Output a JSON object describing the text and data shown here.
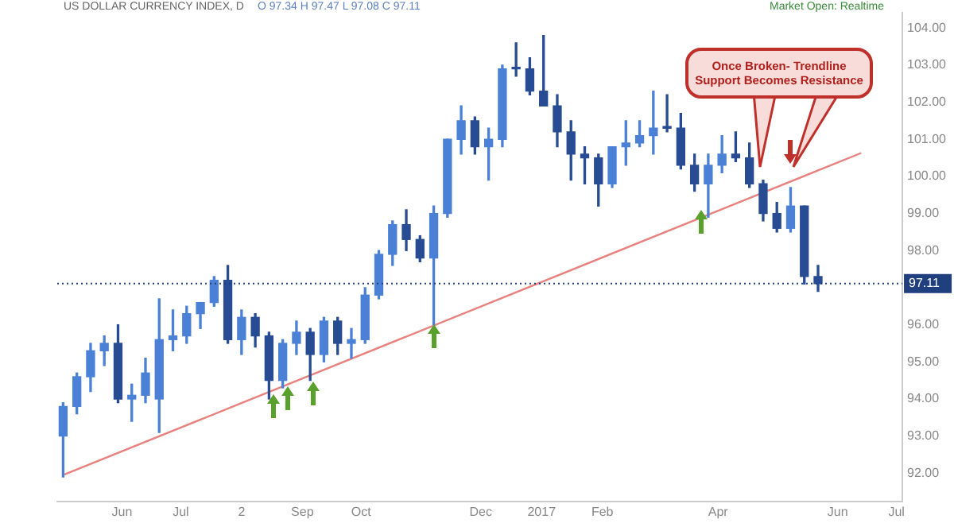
{
  "chart_data": {
    "type": "candlestick",
    "title": "US DOLLAR CURRENCY INDEX, D",
    "subtitle": "O 97.34 H 97.47 L 97.08 C 97.11",
    "x": [
      "2016-05-02",
      "2016-05-09",
      "2016-05-16",
      "2016-05-23",
      "2016-05-30",
      "2016-06-06",
      "2016-06-13",
      "2016-06-20",
      "2016-06-27",
      "2016-07-04",
      "2016-07-11",
      "2016-07-18",
      "2016-07-25",
      "2016-08-01",
      "2016-08-08",
      "2016-08-15",
      "2016-08-22",
      "2016-08-29",
      "2016-09-05",
      "2016-09-12",
      "2016-09-19",
      "2016-09-26",
      "2016-10-03",
      "2016-10-10",
      "2016-10-17",
      "2016-10-24",
      "2016-10-31",
      "2016-11-07",
      "2016-11-14",
      "2016-11-21",
      "2016-11-28",
      "2016-12-05",
      "2016-12-12",
      "2016-12-19",
      "2016-12-26",
      "2017-01-02",
      "2017-01-09",
      "2017-01-16",
      "2017-01-23",
      "2017-01-30",
      "2017-02-06",
      "2017-02-13",
      "2017-02-20",
      "2017-02-27",
      "2017-03-06",
      "2017-03-13",
      "2017-03-20",
      "2017-03-27",
      "2017-04-03",
      "2017-04-10",
      "2017-04-17",
      "2017-04-24",
      "2017-05-01",
      "2017-05-08",
      "2017-05-15",
      "2017-05-22"
    ],
    "ohlc": [
      [
        93.0,
        93.9,
        91.9,
        93.8
      ],
      [
        93.8,
        94.7,
        93.6,
        94.6
      ],
      [
        94.6,
        95.5,
        94.2,
        95.3
      ],
      [
        95.3,
        95.7,
        94.9,
        95.5
      ],
      [
        95.5,
        96.0,
        93.9,
        94.0
      ],
      [
        94.0,
        94.4,
        93.4,
        94.1
      ],
      [
        94.1,
        95.1,
        93.9,
        94.7
      ],
      [
        94.0,
        96.7,
        93.1,
        95.6
      ],
      [
        95.6,
        96.4,
        95.3,
        95.7
      ],
      [
        95.7,
        96.5,
        95.5,
        96.3
      ],
      [
        96.3,
        96.6,
        95.9,
        96.6
      ],
      [
        96.6,
        97.3,
        96.5,
        97.2
      ],
      [
        97.2,
        97.6,
        95.5,
        95.6
      ],
      [
        95.6,
        96.4,
        95.2,
        96.2
      ],
      [
        96.2,
        96.3,
        95.4,
        95.7
      ],
      [
        95.7,
        95.8,
        94.0,
        94.5
      ],
      [
        94.5,
        95.6,
        94.3,
        95.5
      ],
      [
        95.5,
        96.1,
        95.2,
        95.8
      ],
      [
        95.8,
        95.9,
        94.5,
        95.2
      ],
      [
        95.2,
        96.2,
        95.0,
        96.1
      ],
      [
        96.1,
        96.2,
        95.2,
        95.5
      ],
      [
        95.5,
        95.9,
        95.1,
        95.6
      ],
      [
        95.6,
        97.0,
        95.5,
        96.8
      ],
      [
        96.8,
        98.0,
        96.7,
        97.9
      ],
      [
        97.9,
        98.8,
        97.6,
        98.7
      ],
      [
        98.7,
        99.1,
        98.0,
        98.3
      ],
      [
        98.3,
        98.4,
        97.7,
        97.8
      ],
      [
        97.8,
        99.2,
        96.0,
        99.0
      ],
      [
        99.0,
        101.0,
        98.9,
        101.0
      ],
      [
        101.0,
        101.9,
        100.6,
        101.5
      ],
      [
        101.5,
        101.6,
        100.6,
        100.8
      ],
      [
        100.8,
        101.3,
        99.9,
        101.0
      ],
      [
        101.0,
        103.0,
        100.8,
        102.9
      ],
      [
        102.9,
        103.6,
        102.7,
        102.9
      ],
      [
        102.9,
        103.2,
        102.2,
        102.3
      ],
      [
        102.3,
        103.8,
        101.9,
        101.9
      ],
      [
        101.9,
        102.2,
        100.8,
        101.2
      ],
      [
        101.2,
        101.5,
        99.9,
        100.6
      ],
      [
        100.6,
        100.8,
        99.8,
        100.5
      ],
      [
        100.5,
        100.6,
        99.2,
        99.8
      ],
      [
        99.8,
        100.8,
        99.7,
        100.8
      ],
      [
        100.8,
        101.5,
        100.3,
        100.9
      ],
      [
        100.9,
        101.5,
        100.8,
        101.1
      ],
      [
        101.1,
        102.3,
        100.6,
        101.3
      ],
      [
        101.3,
        102.2,
        101.2,
        101.3
      ],
      [
        101.3,
        101.7,
        100.2,
        100.3
      ],
      [
        100.3,
        100.6,
        99.6,
        99.8
      ],
      [
        99.8,
        100.6,
        98.9,
        100.3
      ],
      [
        100.3,
        101.1,
        100.1,
        100.6
      ],
      [
        100.6,
        101.2,
        100.4,
        100.5
      ],
      [
        100.5,
        100.9,
        99.7,
        99.8
      ],
      [
        99.8,
        99.9,
        98.8,
        99.0
      ],
      [
        99.0,
        99.3,
        98.5,
        98.6
      ],
      [
        98.6,
        99.7,
        98.5,
        99.2
      ],
      [
        99.2,
        99.2,
        97.1,
        97.3
      ],
      [
        97.3,
        97.6,
        96.9,
        97.11
      ]
    ],
    "colors": [
      "#4a80d6",
      "#4a80d6",
      "#4a80d6",
      "#4a80d6",
      "#274c94",
      "#4a80d6",
      "#4a80d6",
      "#4a80d6",
      "#4a80d6",
      "#4a80d6",
      "#4a80d6",
      "#4a80d6",
      "#274c94",
      "#4a80d6",
      "#274c94",
      "#274c94",
      "#4a80d6",
      "#4a80d6",
      "#274c94",
      "#4a80d6",
      "#274c94",
      "#4a80d6",
      "#4a80d6",
      "#4a80d6",
      "#4a80d6",
      "#274c94",
      "#274c94",
      "#4a80d6",
      "#4a80d6",
      "#4a80d6",
      "#274c94",
      "#4a80d6",
      "#4a80d6",
      "#274c94",
      "#274c94",
      "#274c94",
      "#274c94",
      "#274c94",
      "#274c94",
      "#274c94",
      "#4a80d6",
      "#4a80d6",
      "#4a80d6",
      "#4a80d6",
      "#274c94",
      "#274c94",
      "#274c94",
      "#4a80d6",
      "#4a80d6",
      "#274c94",
      "#274c94",
      "#274c94",
      "#274c94",
      "#4a80d6",
      "#274c94",
      "#274c94"
    ],
    "series": [
      {
        "type": "line",
        "x": [
          "2016-05-02",
          "2017-06-13"
        ],
        "values": [
          91.95,
          100.63
        ],
        "color": "#e8827f"
      }
    ],
    "xlim": [
      "2016-04-29",
      "2017-07-04"
    ],
    "ylim": [
      91.24,
      104.42
    ],
    "xticks": [
      {
        "value": "2016-06-01",
        "label": "Jun"
      },
      {
        "value": "2016-07-01",
        "label": "Jul"
      },
      {
        "value": "2016-08-01",
        "label": "2"
      },
      {
        "value": "2016-09-01",
        "label": "Sep"
      },
      {
        "value": "2016-10-01",
        "label": "Oct"
      },
      {
        "value": "2016-12-01",
        "label": "Dec"
      },
      {
        "value": "2017-01-01",
        "label": "2017"
      },
      {
        "value": "2017-02-01",
        "label": "Feb"
      },
      {
        "value": "2017-04-01",
        "label": "Apr"
      },
      {
        "value": "2017-06-01",
        "label": "Jun"
      },
      {
        "value": "2017-07-01",
        "label": "Jul"
      }
    ],
    "yticks": [
      {
        "value": 92,
        "label": "92.00"
      },
      {
        "value": 93,
        "label": "93.00"
      },
      {
        "value": 94,
        "label": "94.00"
      },
      {
        "value": 95,
        "label": "95.00"
      },
      {
        "value": 96,
        "label": "96.00"
      },
      {
        "value": 98,
        "label": "98.00"
      },
      {
        "value": 99,
        "label": "99.00"
      },
      {
        "value": 100,
        "label": "100.00"
      },
      {
        "value": 101,
        "label": "101.00"
      },
      {
        "value": 102,
        "label": "102.00"
      },
      {
        "value": 103,
        "label": "103.00"
      },
      {
        "value": 104,
        "label": "104.00"
      }
    ],
    "ref_lines": [
      {
        "axis": "y",
        "value": 97.11,
        "label": "97.11",
        "color": "#1f3f7f"
      }
    ],
    "annotations": [
      "Once Broken- Trendline Support Becomes Resistance",
      "Market Open: Realtime"
    ]
  }
}
